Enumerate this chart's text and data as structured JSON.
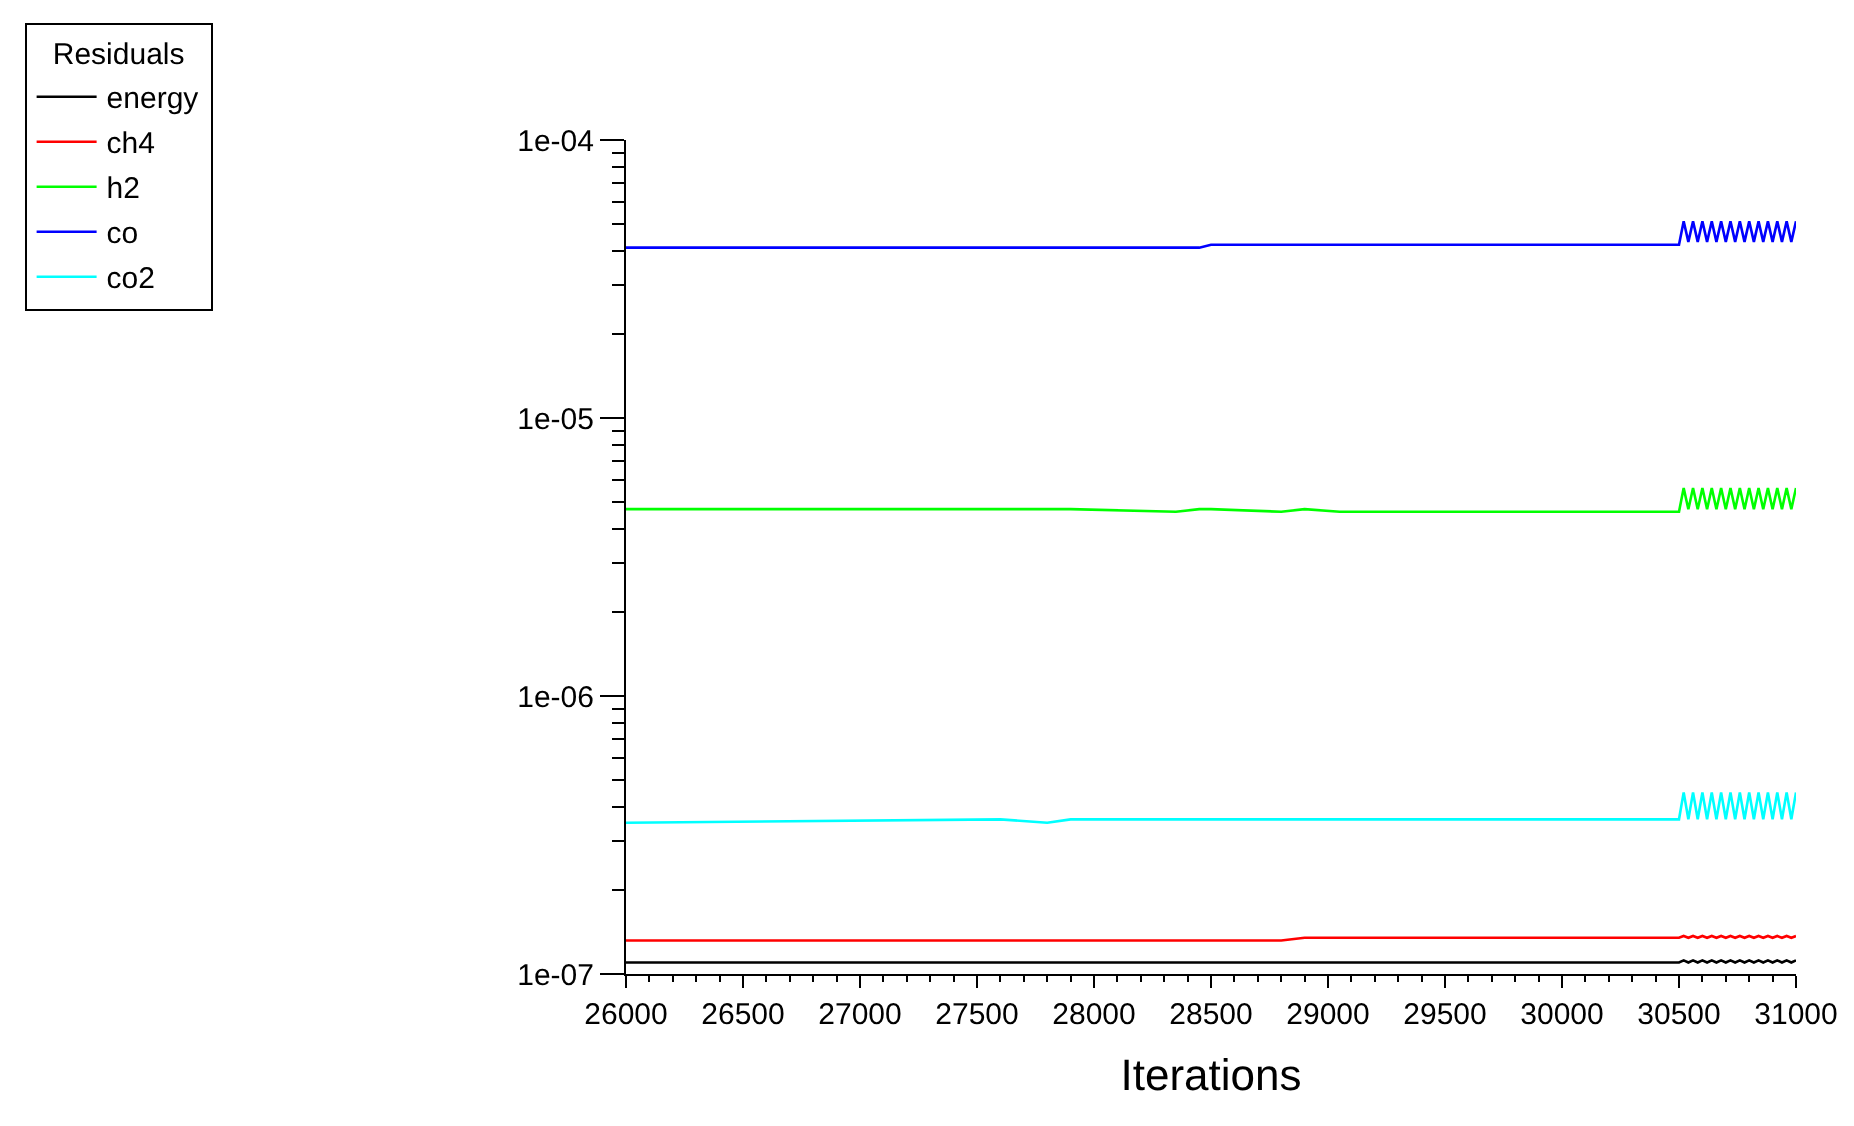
{
  "chart_data": {
    "type": "line",
    "xlabel": "Iterations",
    "legend_title": "Residuals",
    "legend": "top left",
    "log": "y",
    "grid": false,
    "marker": "none",
    "line_style": "solid",
    "x": [
      26000,
      27600,
      27800,
      27900,
      28350,
      28450,
      28500,
      28800,
      28900,
      29050,
      30500,
      30520,
      30540,
      30560,
      30580,
      30600,
      30620,
      30640,
      30660,
      30680,
      30700,
      30720,
      30740,
      30760,
      30780,
      30800,
      30820,
      30840,
      30860,
      30880,
      30900,
      30920,
      30940,
      30960,
      30980,
      31000
    ],
    "xlim": [
      26000,
      31000
    ],
    "xticks": [
      26000,
      26500,
      27000,
      27500,
      28000,
      28500,
      29000,
      29500,
      30000,
      30500,
      31000
    ],
    "ylim": [
      1e-07,
      0.0001
    ],
    "yticks": [
      {
        "value": 1e-07,
        "label": "1e-07"
      },
      {
        "value": 1e-06,
        "label": "1e-06"
      },
      {
        "value": 1e-05,
        "label": "1e-05"
      },
      {
        "value": 0.0001,
        "label": "1e-04"
      }
    ],
    "series": [
      {
        "name": "energy",
        "color": "#000000",
        "values": [
          1.1e-07,
          1.1e-07,
          1.1e-07,
          1.1e-07,
          1.1e-07,
          1.1e-07,
          1.1e-07,
          1.1e-07,
          1.1e-07,
          1.1e-07,
          1.1e-07,
          1.12e-07,
          1.1e-07,
          1.12e-07,
          1.1e-07,
          1.12e-07,
          1.1e-07,
          1.12e-07,
          1.1e-07,
          1.12e-07,
          1.1e-07,
          1.12e-07,
          1.1e-07,
          1.12e-07,
          1.1e-07,
          1.12e-07,
          1.1e-07,
          1.12e-07,
          1.1e-07,
          1.12e-07,
          1.1e-07,
          1.12e-07,
          1.1e-07,
          1.12e-07,
          1.1e-07,
          1.12e-07
        ]
      },
      {
        "name": "ch4",
        "color": "#ff0000",
        "values": [
          1.32e-07,
          1.32e-07,
          1.32e-07,
          1.32e-07,
          1.32e-07,
          1.32e-07,
          1.32e-07,
          1.32e-07,
          1.35e-07,
          1.35e-07,
          1.35e-07,
          1.37e-07,
          1.35e-07,
          1.37e-07,
          1.35e-07,
          1.37e-07,
          1.35e-07,
          1.37e-07,
          1.35e-07,
          1.37e-07,
          1.35e-07,
          1.37e-07,
          1.35e-07,
          1.37e-07,
          1.35e-07,
          1.37e-07,
          1.35e-07,
          1.37e-07,
          1.35e-07,
          1.37e-07,
          1.35e-07,
          1.37e-07,
          1.35e-07,
          1.37e-07,
          1.35e-07,
          1.37e-07
        ]
      },
      {
        "name": "h2",
        "color": "#00ff00",
        "values": [
          4.7e-06,
          4.7e-06,
          4.7e-06,
          4.7e-06,
          4.6e-06,
          4.7e-06,
          4.7e-06,
          4.6e-06,
          4.7e-06,
          4.6e-06,
          4.6e-06,
          5.6e-06,
          4.7e-06,
          5.6e-06,
          4.7e-06,
          5.6e-06,
          4.7e-06,
          5.6e-06,
          4.7e-06,
          5.6e-06,
          4.7e-06,
          5.6e-06,
          4.7e-06,
          5.6e-06,
          4.7e-06,
          5.6e-06,
          4.7e-06,
          5.6e-06,
          4.7e-06,
          5.6e-06,
          4.7e-06,
          5.6e-06,
          4.7e-06,
          5.6e-06,
          4.7e-06,
          5.6e-06
        ]
      },
      {
        "name": "co",
        "color": "#0000ff",
        "values": [
          4.1e-05,
          4.1e-05,
          4.1e-05,
          4.1e-05,
          4.1e-05,
          4.1e-05,
          4.2e-05,
          4.2e-05,
          4.2e-05,
          4.2e-05,
          4.2e-05,
          5.1e-05,
          4.3e-05,
          5.1e-05,
          4.3e-05,
          5.1e-05,
          4.3e-05,
          5.1e-05,
          4.3e-05,
          5.1e-05,
          4.3e-05,
          5.1e-05,
          4.3e-05,
          5.1e-05,
          4.3e-05,
          5.1e-05,
          4.3e-05,
          5.1e-05,
          4.3e-05,
          5.1e-05,
          4.3e-05,
          5.1e-05,
          4.3e-05,
          5.1e-05,
          4.3e-05,
          5.1e-05
        ]
      },
      {
        "name": "co2",
        "color": "#00ffff",
        "values": [
          3.5e-07,
          3.6e-07,
          3.5e-07,
          3.6e-07,
          3.6e-07,
          3.6e-07,
          3.6e-07,
          3.6e-07,
          3.6e-07,
          3.6e-07,
          3.6e-07,
          4.5e-07,
          3.6e-07,
          4.5e-07,
          3.6e-07,
          4.5e-07,
          3.6e-07,
          4.5e-07,
          3.6e-07,
          4.5e-07,
          3.6e-07,
          4.5e-07,
          3.6e-07,
          4.5e-07,
          3.6e-07,
          4.5e-07,
          3.6e-07,
          4.5e-07,
          3.6e-07,
          4.5e-07,
          3.6e-07,
          4.5e-07,
          3.6e-07,
          4.5e-07,
          3.6e-07,
          4.5e-07
        ]
      }
    ]
  }
}
